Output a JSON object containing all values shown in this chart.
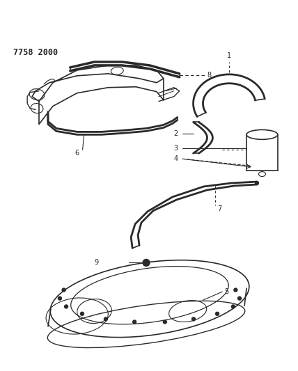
{
  "title": "7758 2000",
  "bg_color": "#ffffff",
  "line_color": "#2a2a2a",
  "label_color": "#222222",
  "fig_width": 4.28,
  "fig_height": 5.33,
  "dpi": 100
}
